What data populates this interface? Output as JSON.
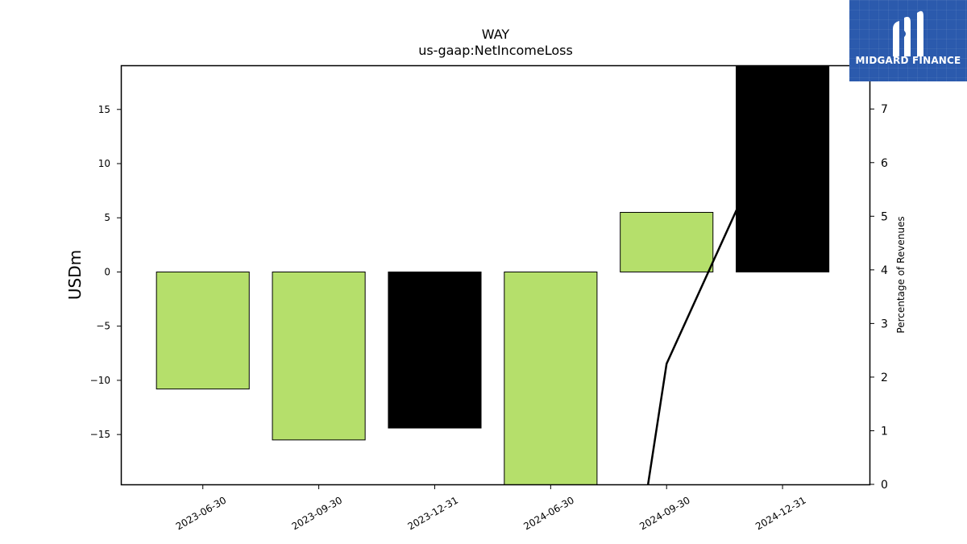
{
  "chart_data": {
    "type": "bar",
    "title": "WAY",
    "subtitle": "us-gaap:NetIncomeLoss",
    "ylabel": "USDm",
    "y2label": "Percentage of Revenues",
    "categories": [
      "2023-06-30",
      "2023-09-30",
      "2023-12-31",
      "2024-06-30",
      "2024-09-30",
      "2024-12-31"
    ],
    "values": [
      -10.8,
      -15.5,
      -14.4,
      -19.8,
      5.5,
      19.3
    ],
    "bar_colors": [
      "#b5df6b",
      "#b5df6b",
      "#000000",
      "#b5df6b",
      "#b5df6b",
      "#000000"
    ],
    "ylim": [
      -19.6,
      19.0
    ],
    "yticks": [
      -15,
      -10,
      -5,
      0,
      5,
      10,
      15
    ],
    "ytick_labels": [
      "−15",
      "−10",
      "−5",
      "0",
      "5",
      "10",
      "15"
    ],
    "y2lim": [
      0,
      7.8
    ],
    "y2ticks": [
      0,
      1,
      2,
      3,
      4,
      5,
      6,
      7
    ],
    "line_series": {
      "x_index": [
        3.84,
        4,
        5
      ],
      "values": [
        0,
        2.25,
        7.0
      ],
      "color": "#000000"
    },
    "grid": false,
    "legend": "none"
  },
  "logo": {
    "text": "MIDGARD FINANCE",
    "color": "#2b5aad"
  }
}
